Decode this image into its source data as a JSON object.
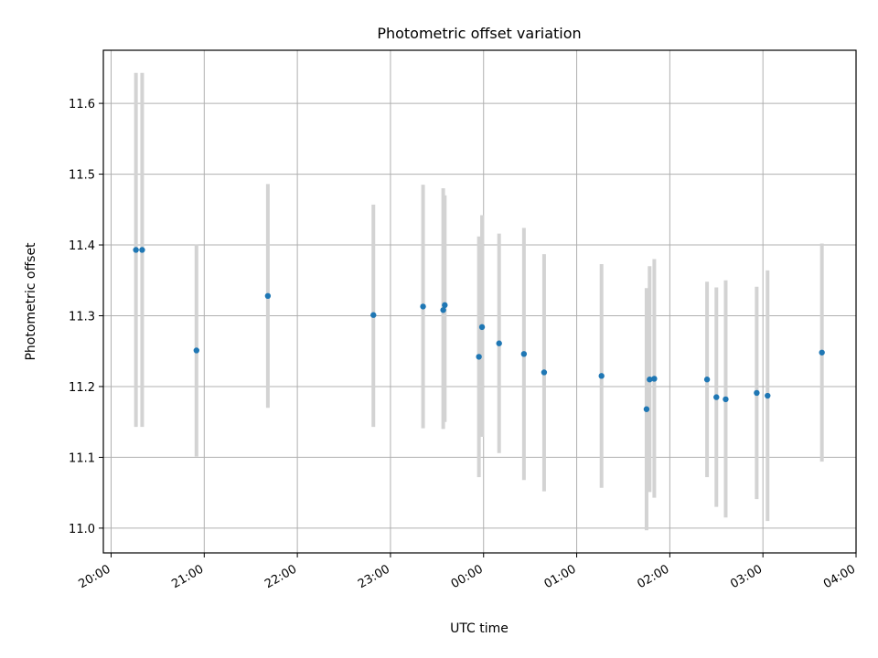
{
  "chart_data": {
    "type": "scatter",
    "title": "Photometric offset variation",
    "xlabel": "UTC time",
    "ylabel": "Photometric offset",
    "x_tick_labels": [
      "20:00",
      "21:00",
      "22:00",
      "23:00",
      "00:00",
      "01:00",
      "02:00",
      "03:00",
      "04:00"
    ],
    "y_tick_labels": [
      "11.0",
      "11.1",
      "11.2",
      "11.3",
      "11.4",
      "11.5",
      "11.6"
    ],
    "xlim": [
      "19:55",
      "04:00"
    ],
    "ylim": [
      10.965,
      11.675
    ],
    "grid": true,
    "point_color": "#1f77b4",
    "errorbar_color": "#d3d3d3",
    "points": [
      {
        "time": "20:16",
        "y": 11.393,
        "ylo": 11.143,
        "yhi": 11.643
      },
      {
        "time": "20:20",
        "y": 11.393,
        "ylo": 11.143,
        "yhi": 11.643
      },
      {
        "time": "20:55",
        "y": 11.251,
        "ylo": 11.101,
        "yhi": 11.401
      },
      {
        "time": "21:41",
        "y": 11.328,
        "ylo": 11.17,
        "yhi": 11.486
      },
      {
        "time": "22:49",
        "y": 11.301,
        "ylo": 11.143,
        "yhi": 11.457
      },
      {
        "time": "23:21",
        "y": 11.313,
        "ylo": 11.141,
        "yhi": 11.485
      },
      {
        "time": "23:34",
        "y": 11.308,
        "ylo": 11.14,
        "yhi": 11.48
      },
      {
        "time": "23:35",
        "y": 11.315,
        "ylo": 11.15,
        "yhi": 11.47
      },
      {
        "time": "23:57",
        "y": 11.242,
        "ylo": 11.072,
        "yhi": 11.412
      },
      {
        "time": "23:59",
        "y": 11.284,
        "ylo": 11.129,
        "yhi": 11.442
      },
      {
        "time": "00:10",
        "y": 11.261,
        "ylo": 11.106,
        "yhi": 11.416
      },
      {
        "time": "00:26",
        "y": 11.246,
        "ylo": 11.068,
        "yhi": 11.424
      },
      {
        "time": "00:39",
        "y": 11.22,
        "ylo": 11.052,
        "yhi": 11.387
      },
      {
        "time": "01:16",
        "y": 11.215,
        "ylo": 11.057,
        "yhi": 11.373
      },
      {
        "time": "01:45",
        "y": 11.168,
        "ylo": 10.997,
        "yhi": 11.339
      },
      {
        "time": "01:47",
        "y": 11.21,
        "ylo": 11.051,
        "yhi": 11.37
      },
      {
        "time": "01:50",
        "y": 11.211,
        "ylo": 11.043,
        "yhi": 11.38
      },
      {
        "time": "02:24",
        "y": 11.21,
        "ylo": 11.072,
        "yhi": 11.348
      },
      {
        "time": "02:30",
        "y": 11.185,
        "ylo": 11.03,
        "yhi": 11.34
      },
      {
        "time": "02:36",
        "y": 11.182,
        "ylo": 11.015,
        "yhi": 11.35
      },
      {
        "time": "02:56",
        "y": 11.191,
        "ylo": 11.041,
        "yhi": 11.341
      },
      {
        "time": "03:03",
        "y": 11.187,
        "ylo": 11.01,
        "yhi": 11.364
      },
      {
        "time": "03:38",
        "y": 11.248,
        "ylo": 11.094,
        "yhi": 11.402
      }
    ]
  }
}
